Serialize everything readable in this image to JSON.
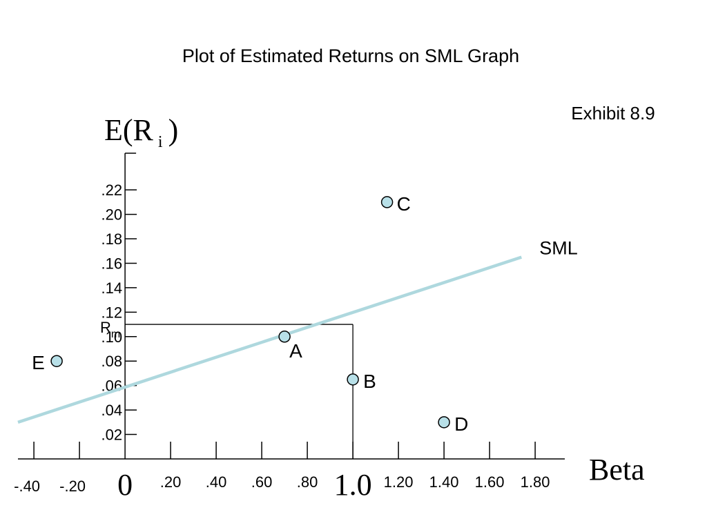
{
  "chart_data": {
    "type": "scatter",
    "title": "Plot of Estimated Returns on SML Graph",
    "exhibit_label": "Exhibit 8.9",
    "ylabel": {
      "main": "E(R",
      "subscript": "i",
      "close": ")"
    },
    "xlabel": "Beta",
    "xlim": [
      -0.47,
      1.93
    ],
    "ylim": [
      0,
      0.25
    ],
    "x_ticks": [
      {
        "value": -0.4,
        "label": "-.40"
      },
      {
        "value": -0.2,
        "label": "-.20"
      },
      {
        "value": 0,
        "label": "0"
      },
      {
        "value": 0.2,
        "label": ".20"
      },
      {
        "value": 0.4,
        "label": ".40"
      },
      {
        "value": 0.6,
        "label": ".60"
      },
      {
        "value": 0.8,
        "label": ".80"
      },
      {
        "value": 1.0,
        "label": "1.0"
      },
      {
        "value": 1.2,
        "label": "1.20"
      },
      {
        "value": 1.4,
        "label": "1.40"
      },
      {
        "value": 1.6,
        "label": "1.60"
      },
      {
        "value": 1.8,
        "label": "1.80"
      }
    ],
    "y_ticks": [
      {
        "value": 0.02,
        "label": ".02"
      },
      {
        "value": 0.04,
        "label": ".04"
      },
      {
        "value": 0.06,
        "label": ".06"
      },
      {
        "value": 0.08,
        "label": ".08"
      },
      {
        "value": 0.1,
        "label": ".10"
      },
      {
        "value": 0.12,
        "label": ".12"
      },
      {
        "value": 0.14,
        "label": ".14"
      },
      {
        "value": 0.16,
        "label": ".16"
      },
      {
        "value": 0.18,
        "label": ".18"
      },
      {
        "value": 0.2,
        "label": ".20"
      },
      {
        "value": 0.22,
        "label": ".22"
      }
    ],
    "rm": {
      "value": 0.11,
      "beta": 1.0,
      "label": "R",
      "subscript": "m"
    },
    "sml": {
      "name": "SML",
      "x": [
        -0.47,
        1.74
      ],
      "y": [
        0.03,
        0.165
      ],
      "color": "#aed8de"
    },
    "points": [
      {
        "name": "A",
        "x": 0.7,
        "y": 0.1
      },
      {
        "name": "B",
        "x": 1.0,
        "y": 0.065
      },
      {
        "name": "C",
        "x": 1.15,
        "y": 0.21
      },
      {
        "name": "D",
        "x": 1.4,
        "y": 0.03
      },
      {
        "name": "E",
        "x": -0.3,
        "y": 0.08
      }
    ],
    "point_color": "#b8e0e8",
    "grid": false
  }
}
